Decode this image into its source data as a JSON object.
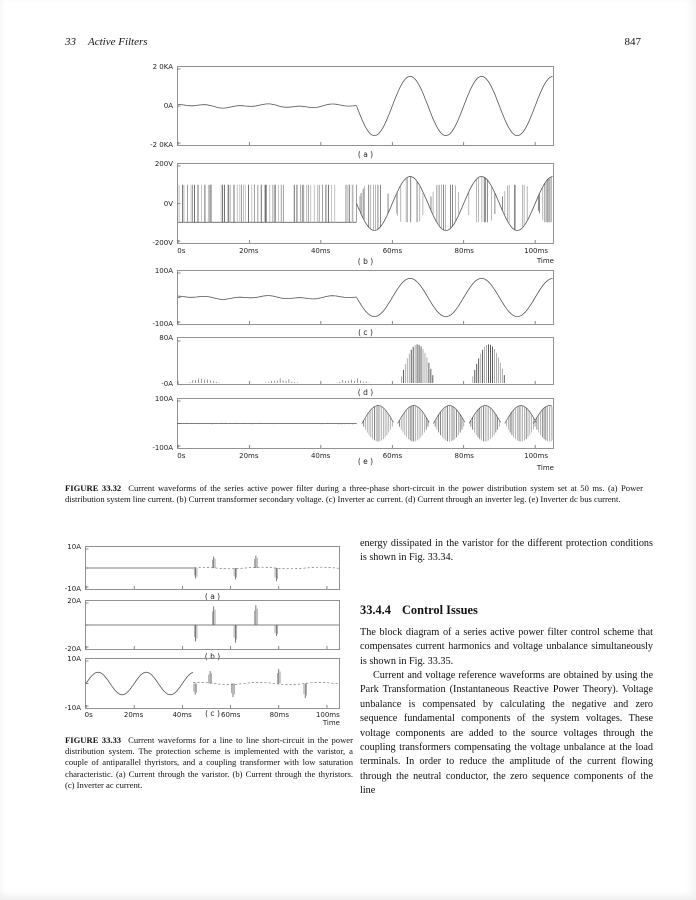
{
  "header": {
    "chapter": "33",
    "title": "Active Filters",
    "page": "847"
  },
  "figure3232": {
    "caption_label": "FIGURE 33.32",
    "caption_text": "Current waveforms of the series active power filter during a three-phase short-circuit in the power distribution system set at 50 ms. (a) Power distribution system line current. (b) Current transformer secondary voltage. (c) Inverter ac current. (d) Current through an inverter leg. (e) Inverter dc bus current."
  },
  "figure3333": {
    "caption_label": "FIGURE 33.33",
    "caption_text": "Current waveforms for a line to line short-circuit in the power distribution system. The protection scheme is implemented with the varistor, a couple of antiparallel thyristors, and a coupling transformer with low saturation characteristic. (a) Current through the varistor. (b) Current through the thyristors. (c) Inverter ac current."
  },
  "right_column": {
    "para1": "energy dissipated in the varistor for the different protection conditions is shown in Fig. 33.34.",
    "heading_number": "33.4.4",
    "heading_title": "Control Issues",
    "para2": "The block diagram of a series active power filter control scheme that compensates current harmonics and voltage unbalance simultaneously is shown in Fig. 33.35.",
    "para3": "Current and voltage reference waveforms are obtained by using the Park Transformation (Instantaneous Reactive Power Theory). Voltage unbalance is compensated by calculating the negative and zero sequence fundamental components of the system voltages. These voltage components are added to the source voltages through the coupling transformers compensating the voltage unbalance at the load terminals. In order to reduce the amplitude of the current flowing through the neutral conductor, the zero sequence components of the line"
  },
  "chart_data": [
    {
      "figure": "33.32",
      "panel_label": "( a )",
      "type": "line",
      "name": "Power distribution system line current",
      "y_top_label": "2 0KA",
      "y_mid_label": "0A",
      "y_bottom_label": "-2 0KA",
      "x_range_ms": [
        0,
        105
      ],
      "fault_time_ms": 50,
      "segments": [
        {
          "kind": "ripple",
          "t0": 0,
          "t1": 50,
          "amp": 0.06
        },
        {
          "kind": "sine",
          "t0": 50,
          "t1": 105,
          "amp": 0.8,
          "period_ms": 20,
          "invert": true
        }
      ]
    },
    {
      "figure": "33.32",
      "panel_label": "( b )",
      "type": "line",
      "name": "Current transformer secondary voltage",
      "y_top_label": "200V",
      "y_mid_label": "0V",
      "y_bottom_label": "-200V",
      "x_tick_labels": [
        "0s",
        "20ms",
        "40ms",
        "60ms",
        "80ms",
        "100ms"
      ],
      "x_title": "Time",
      "x_range_ms": [
        0,
        105
      ],
      "fault_time_ms": 50,
      "segments": [
        {
          "kind": "pwm_band",
          "t0": 0,
          "t1": 50,
          "band": 0.5
        },
        {
          "kind": "pwm_sine",
          "t0": 50,
          "t1": 105,
          "amp": 0.72,
          "period_ms": 20,
          "band": 0.5
        }
      ]
    },
    {
      "figure": "33.32",
      "panel_label": "( c )",
      "type": "line",
      "name": "Inverter ac current",
      "y_top_label": "100A",
      "y_bottom_label": "-100A",
      "x_range_ms": [
        0,
        105
      ],
      "fault_time_ms": 50,
      "segments": [
        {
          "kind": "ripple",
          "t0": 0,
          "t1": 50,
          "amp": 0.08
        },
        {
          "kind": "sine",
          "t0": 50,
          "t1": 105,
          "amp": 0.78,
          "period_ms": 20,
          "invert": true
        }
      ]
    },
    {
      "figure": "33.32",
      "panel_label": "( d )",
      "type": "bar",
      "name": "Current through an inverter leg",
      "y_top_label": "80A",
      "y_bottom_label": "-0A",
      "baseline": "bottom",
      "x_range_ms": [
        0,
        105
      ],
      "fault_time_ms": 50,
      "segments": [
        {
          "kind": "tick_clusters",
          "centers": [
            7,
            29,
            49
          ],
          "amp": 0.1
        },
        {
          "kind": "bar_clusters",
          "centers": [
            67,
            87
          ],
          "width": 10,
          "amp": 0.92
        }
      ]
    },
    {
      "figure": "33.32",
      "panel_label": "( e )",
      "type": "line",
      "name": "Inverter dc bus current",
      "y_top_label": "100A",
      "y_bottom_label": "-100A",
      "x_tick_labels": [
        "0s",
        "20ms",
        "40ms",
        "60ms",
        "80ms",
        "100ms"
      ],
      "x_title": "Time",
      "x_range_ms": [
        0,
        105
      ],
      "fault_time_ms": 50,
      "segments": [
        {
          "kind": "noise",
          "t0": 0,
          "t1": 50,
          "amp": 0.05
        },
        {
          "kind": "burst_train",
          "centers": [
            56,
            66,
            76,
            86,
            96,
            104
          ],
          "width": 9,
          "amp": 0.8
        }
      ]
    },
    {
      "figure": "33.33",
      "panel_label": "( a )",
      "type": "line",
      "name": "Current through the varistor",
      "y_top_label": "10A",
      "y_bottom_label": "-10A",
      "x_range_ms": [
        0,
        105
      ],
      "fault_time_ms": 45,
      "segments": [
        {
          "kind": "flat",
          "t0": 0,
          "t1": 45
        },
        {
          "kind": "dashed_flat",
          "t0": 45,
          "t1": 105,
          "wobble": 0.04
        },
        {
          "kind": "pulses",
          "times": [
            45.5,
            53,
            62,
            70.5,
            79
          ],
          "heights": [
            -0.55,
            0.6,
            -0.6,
            0.65,
            -0.7
          ]
        }
      ]
    },
    {
      "figure": "33.33",
      "panel_label": "( b )",
      "type": "line",
      "name": "Current through the thyristors",
      "y_top_label": "20A",
      "y_bottom_label": "-20A",
      "x_range_ms": [
        0,
        105
      ],
      "fault_time_ms": 45,
      "segments": [
        {
          "kind": "flat",
          "t0": 0,
          "t1": 105
        },
        {
          "kind": "pulses",
          "times": [
            45.5,
            53,
            62,
            70.5,
            79
          ],
          "heights": [
            -0.75,
            0.85,
            -0.8,
            0.9,
            -0.5
          ]
        }
      ]
    },
    {
      "figure": "33.33",
      "panel_label": "( c )",
      "type": "line",
      "name": "Inverter ac current",
      "y_top_label": "10A",
      "y_bottom_label": "-10A",
      "x_tick_labels": [
        "0s",
        "20ms",
        "40ms",
        "60ms",
        "80ms",
        "100ms"
      ],
      "x_title": "Time",
      "x_range_ms": [
        0,
        105
      ],
      "fault_time_ms": 45,
      "segments": [
        {
          "kind": "sine",
          "t0": 0,
          "t1": 44.5,
          "amp": 0.5,
          "period_ms": 20,
          "invert": false
        },
        {
          "kind": "dashed_flat",
          "t0": 44.5,
          "t1": 105,
          "wobble": 0.05
        },
        {
          "kind": "pulses",
          "times": [
            45.3,
            51.5,
            61,
            80,
            91
          ],
          "heights": [
            -0.5,
            0.55,
            -0.6,
            0.65,
            -0.65
          ]
        }
      ]
    }
  ]
}
